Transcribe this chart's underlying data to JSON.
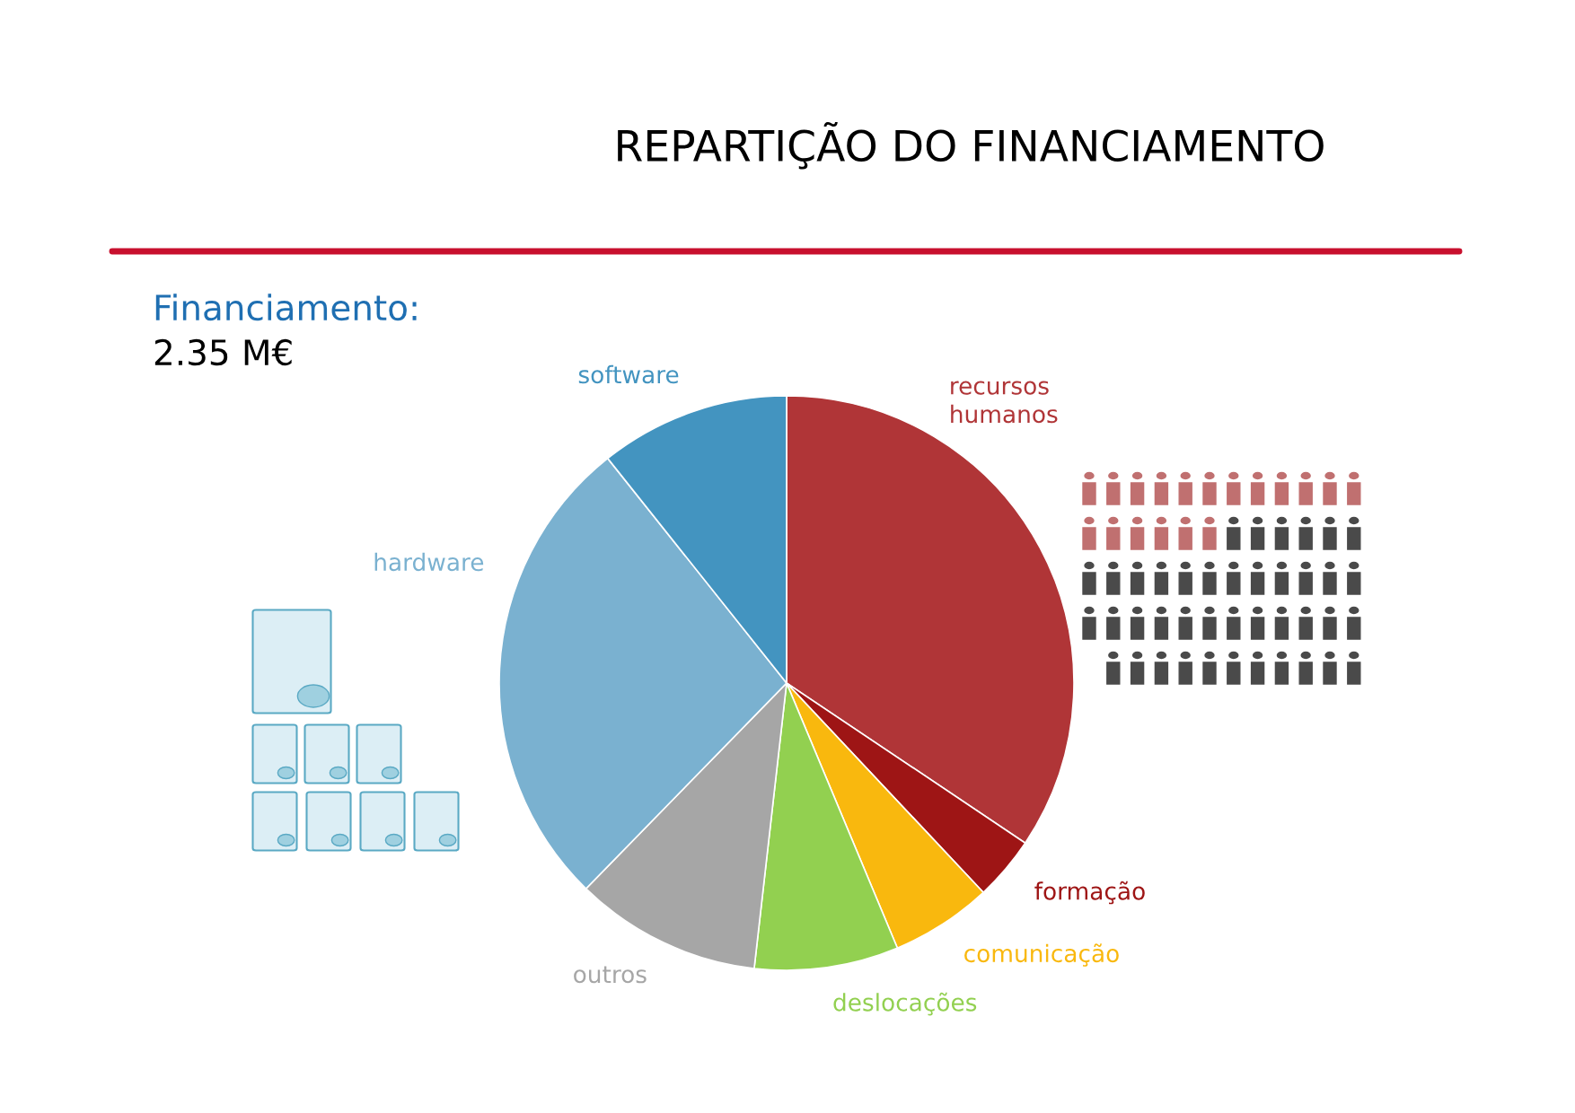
{
  "chart_data": {
    "type": "pie",
    "title": "REPARTIÇÃO DO FINANCIAMENTO",
    "subtitle": "Financiamento:",
    "annotations": [
      "2.35 M€"
    ],
    "categories": [
      "recursos\nhumanos",
      "formação",
      "comunicação",
      "deslocações",
      "outros",
      "hardware",
      "software"
    ],
    "values": [
      34.4,
      3.6,
      5.7,
      8.1,
      10.5,
      27.0,
      10.7
    ],
    "colors": [
      "#b03537",
      "#9e1515",
      "#f9b80e",
      "#92d050",
      "#a6a6a6",
      "#7ab1d0",
      "#4394c0"
    ],
    "legend": false
  }
}
